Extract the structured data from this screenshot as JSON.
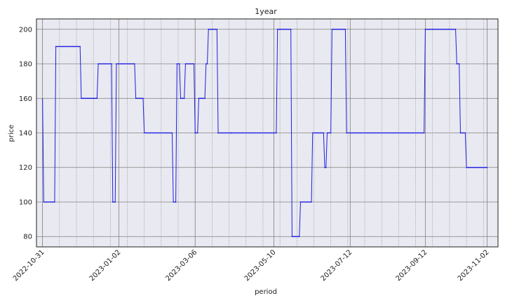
{
  "chart_data": {
    "type": "line",
    "title": "1year",
    "xlabel": "period",
    "ylabel": "price",
    "ylim": [
      74,
      206
    ],
    "xlim": [
      "2022-10-26",
      "2023-11-11"
    ],
    "yticks": [
      80,
      100,
      120,
      140,
      160,
      180,
      200
    ],
    "xtick_labels": [
      "2022-10-31",
      "2023-01-02",
      "2023-03-06",
      "2023-05-10",
      "2023-07-12",
      "2023-09-12",
      "2023-11-02"
    ],
    "grid": true,
    "colors": {
      "line": "#1f1fe0",
      "plot_bg": "#e9e9f1",
      "grid_major": "#808080",
      "grid_minor": "#8a8a8a"
    },
    "series": [
      {
        "x": [
          "2022-10-31",
          "2022-11-01",
          "2022-11-10",
          "2022-11-11",
          "2022-12-01",
          "2022-12-02",
          "2022-12-15",
          "2022-12-16",
          "2022-12-27",
          "2022-12-28",
          "2022-12-30",
          "2022-12-31",
          "2023-01-15",
          "2023-01-16",
          "2023-01-22",
          "2023-01-23",
          "2023-02-15",
          "2023-02-16",
          "2023-02-18",
          "2023-02-19",
          "2023-02-21",
          "2023-02-22",
          "2023-02-25",
          "2023-02-26",
          "2023-03-05",
          "2023-03-06",
          "2023-03-08",
          "2023-03-09",
          "2023-03-14",
          "2023-03-15",
          "2023-03-16",
          "2023-03-17",
          "2023-03-24",
          "2023-03-25",
          "2023-04-04",
          "2023-04-05",
          "2023-05-12",
          "2023-05-13",
          "2023-05-24",
          "2023-05-25",
          "2023-05-31",
          "2023-06-01",
          "2023-06-10",
          "2023-06-11",
          "2023-06-20",
          "2023-06-21",
          "2023-06-22",
          "2023-06-23",
          "2023-06-26",
          "2023-06-27",
          "2023-07-08",
          "2023-07-09",
          "2023-09-11",
          "2023-09-12",
          "2023-10-07",
          "2023-10-08",
          "2023-10-10",
          "2023-10-11",
          "2023-10-15",
          "2023-10-16",
          "2023-11-02"
        ],
        "values": [
          160,
          100,
          100,
          190,
          190,
          160,
          160,
          180,
          180,
          100,
          100,
          180,
          180,
          160,
          160,
          140,
          140,
          100,
          100,
          180,
          180,
          160,
          160,
          180,
          180,
          140,
          140,
          160,
          160,
          180,
          180,
          200,
          200,
          140,
          140,
          140,
          140,
          200,
          200,
          80,
          80,
          100,
          100,
          140,
          140,
          120,
          120,
          140,
          140,
          200,
          200,
          140,
          140,
          200,
          200,
          180,
          180,
          140,
          140,
          120,
          120
        ]
      }
    ]
  }
}
